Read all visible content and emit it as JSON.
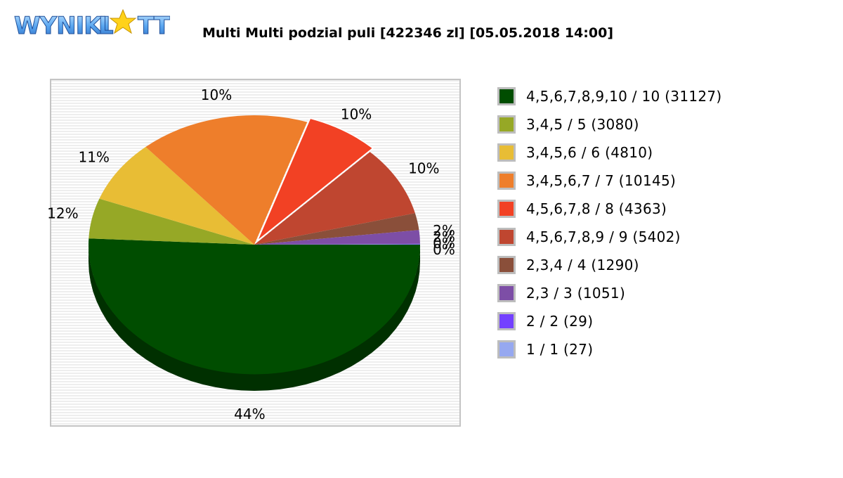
{
  "logo": {
    "text": "WYNIKI LOTTO"
  },
  "title": "Multi Multi podzial puli [422346 zl] [05.05.2018 14:00]",
  "chart_data": {
    "type": "pie",
    "title": "Multi Multi podzial puli [422346 zl] [05.05.2018 14:00]",
    "legend_position": "right",
    "slices": [
      {
        "label": "4,5,6,7,8,9,10 / 10 (31127)",
        "value": 31127,
        "percent_label": "44%",
        "color": "#004d00"
      },
      {
        "label": "3,4,5 / 5 (3080)",
        "value": 3080,
        "percent_label": "12%",
        "color": "#96a826"
      },
      {
        "label": "3,4,5,6 / 6 (4810)",
        "value": 4810,
        "percent_label": "11%",
        "color": "#e8bd35"
      },
      {
        "label": "3,4,5,6,7 / 7 (10145)",
        "value": 10145,
        "percent_label": "10%",
        "color": "#ee7e2b"
      },
      {
        "label": "4,5,6,7,8 / 8 (4363)",
        "value": 4363,
        "percent_label": "10%",
        "color": "#f24124"
      },
      {
        "label": "4,5,6,7,8,9 / 9 (5402)",
        "value": 5402,
        "percent_label": "10%",
        "color": "#bf4630"
      },
      {
        "label": "2,3,4 / 4 (1290)",
        "value": 1290,
        "percent_label": "2%",
        "color": "#8a4f3a"
      },
      {
        "label": "2,3 / 3 (1051)",
        "value": 1051,
        "percent_label": "2%",
        "color": "#7d4ea6"
      },
      {
        "label": "2 / 2 (29)",
        "value": 29,
        "percent_label": "0%",
        "color": "#7340ff"
      },
      {
        "label": "1 / 1 (27)",
        "value": 27,
        "percent_label": "0%",
        "color": "#96a8f0"
      }
    ]
  }
}
